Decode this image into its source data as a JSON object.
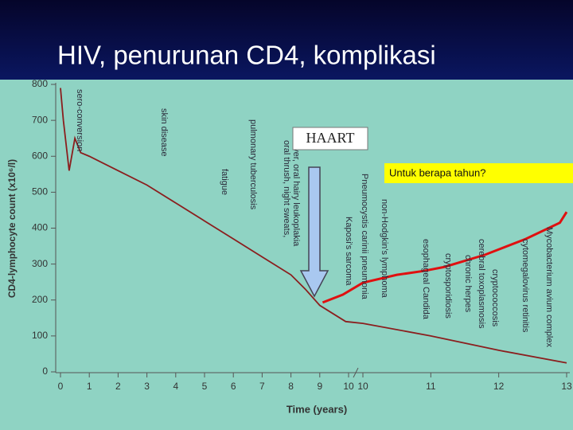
{
  "chart_data": {
    "type": "line",
    "title": "HIV, penurunan CD4, komplikasi",
    "xlabel": "Time (years)",
    "ylabel": "CD4-lymphocyte count (x10⁶/l)",
    "ylim": [
      0,
      800
    ],
    "yticks": [
      0,
      100,
      200,
      300,
      400,
      500,
      600,
      700,
      800
    ],
    "xlim": [
      0,
      10
    ],
    "xticks": [
      0,
      1,
      2,
      3,
      4,
      5,
      6,
      7,
      8,
      9,
      10
    ],
    "x2lim": [
      10,
      13
    ],
    "x2ticks": [
      10,
      11,
      12,
      13
    ],
    "series": [
      {
        "color": "#8b1e1e",
        "x": [
          0,
          0.1,
          0.3,
          0.5,
          0.7,
          1,
          2,
          3,
          4,
          5,
          6,
          7,
          8,
          8.5,
          9,
          9.9,
          10,
          11,
          12,
          13
        ],
        "values": [
          790,
          700,
          560,
          650,
          610,
          600,
          560,
          520,
          470,
          420,
          370,
          320,
          270,
          230,
          185,
          140,
          135,
          100,
          60,
          25
        ]
      },
      {
        "color": "#e01010",
        "x": [
          9.1,
          9.8,
          10,
          10.5,
          10.9,
          11.2,
          11.8,
          12.4,
          12.9,
          13
        ],
        "values": [
          193,
          215,
          248,
          270,
          281,
          292,
          326,
          370,
          415,
          445
        ]
      }
    ],
    "annotations": [
      "sero-conversion",
      "skin disease",
      "fatigue",
      "pulmonary tuberculosis",
      "oral thrush, night sweats,",
      "fever, oral hairy leukoplakia",
      "Kaposi's sarcoma",
      "Pneumocystis carinii pneumonia",
      "non-Hodgkin's lymphoma",
      "esophageal Candida",
      "cryptosporidiosis",
      "chronic herpes",
      "cerebral toxoplasmosis",
      "cryptococcosis",
      "cytomegalovirus retinitis",
      "Mycobacterium avium complex"
    ],
    "haart_label": "HAART",
    "question": "Untuk berapa tahun?"
  }
}
